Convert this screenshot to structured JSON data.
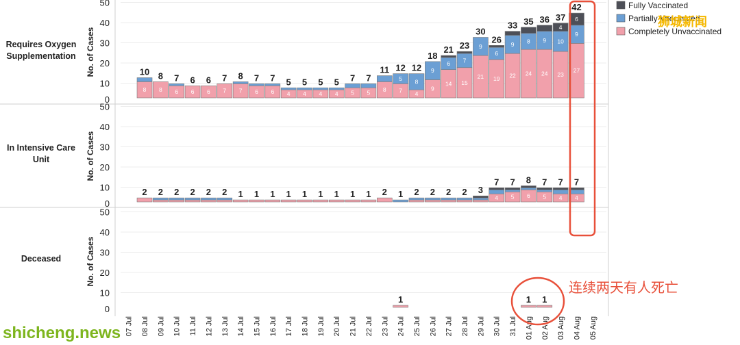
{
  "chart_data": {
    "type": "bar",
    "stacked": true,
    "ylim": [
      0,
      50
    ],
    "y_ticks": [
      0,
      10,
      20,
      30,
      40,
      50
    ],
    "ylabel": "No. of Cases",
    "categories": [
      "07 Jul",
      "08 Jul",
      "09 Jul",
      "10 Jul",
      "11 Jul",
      "12 Jul",
      "13 Jul",
      "14 Jul",
      "15 Jul",
      "16 Jul",
      "17 Jul",
      "18 Jul",
      "19 Jul",
      "20 Jul",
      "21 Jul",
      "22 Jul",
      "23 Jul",
      "24 Jul",
      "25 Jul",
      "26 Jul",
      "27 Jul",
      "28 Jul",
      "29 Jul",
      "30 Jul",
      "31 Jul",
      "01 Aug",
      "02 Aug",
      "03 Aug",
      "04 Aug",
      "05 Aug"
    ],
    "legend": [
      {
        "name": "Fully Vaccinated",
        "color": "#4d4f57"
      },
      {
        "name": "Partially Vaccinated",
        "color": "#6b9fd4"
      },
      {
        "name": "Completely Unvaccinated",
        "color": "#f1a0ab"
      }
    ],
    "panels": [
      {
        "title": "Requires Oxygen Supplementation",
        "title_lines": [
          "Requires Oxygen",
          "Supplementation"
        ],
        "totals": [
          null,
          10,
          8,
          7,
          6,
          6,
          7,
          8,
          7,
          7,
          5,
          5,
          5,
          5,
          7,
          7,
          11,
          12,
          12,
          18,
          21,
          23,
          30,
          26,
          33,
          35,
          36,
          37,
          42,
          null
        ],
        "series": [
          {
            "name": "Completely Unvaccinated",
            "values": [
              0,
              8,
              8,
              6,
              6,
              6,
              7,
              7,
              6,
              6,
              4,
              4,
              4,
              4,
              5,
              5,
              8,
              7,
              4,
              9,
              14,
              15,
              21,
              19,
              22,
              24,
              24,
              23,
              27,
              0
            ]
          },
          {
            "name": "Partially Vaccinated",
            "values": [
              0,
              2,
              0,
              1,
              0,
              0,
              0,
              1,
              1,
              1,
              1,
              1,
              1,
              1,
              2,
              2,
              3,
              5,
              8,
              9,
              6,
              7,
              9,
              6,
              9,
              8,
              9,
              10,
              9,
              0
            ]
          },
          {
            "name": "Fully Vaccinated",
            "values": [
              0,
              0,
              0,
              0,
              0,
              0,
              0,
              0,
              0,
              0,
              0,
              0,
              0,
              0,
              0,
              0,
              0,
              0,
              0,
              0,
              1,
              1,
              0,
              1,
              2,
              3,
              3,
              4,
              6,
              0
            ]
          }
        ]
      },
      {
        "title": "In Intensive Care Unit",
        "title_lines": [
          "In Intensive Care",
          "Unit"
        ],
        "totals": [
          null,
          2,
          2,
          2,
          2,
          2,
          2,
          1,
          1,
          1,
          1,
          1,
          1,
          1,
          1,
          1,
          2,
          1,
          2,
          2,
          2,
          2,
          3,
          7,
          7,
          8,
          7,
          7,
          7,
          null
        ],
        "series": [
          {
            "name": "Completely Unvaccinated",
            "values": [
              0,
              2,
              1,
              1,
              1,
              1,
              1,
              1,
              1,
              1,
              1,
              1,
              1,
              1,
              1,
              1,
              2,
              0,
              1,
              1,
              1,
              1,
              1,
              4,
              5,
              6,
              5,
              4,
              4,
              0
            ]
          },
          {
            "name": "Partially Vaccinated",
            "values": [
              0,
              0,
              1,
              1,
              1,
              1,
              1,
              0,
              0,
              0,
              0,
              0,
              0,
              0,
              0,
              0,
              0,
              1,
              1,
              1,
              1,
              1,
              1,
              2,
              1,
              1,
              1,
              2,
              2,
              0
            ]
          },
          {
            "name": "Fully Vaccinated",
            "values": [
              0,
              0,
              0,
              0,
              0,
              0,
              0,
              0,
              0,
              0,
              0,
              0,
              0,
              0,
              0,
              0,
              0,
              0,
              0,
              0,
              0,
              0,
              1,
              1,
              1,
              1,
              1,
              1,
              1,
              0
            ]
          }
        ]
      },
      {
        "title": "Deceased",
        "title_lines": [
          "Deceased"
        ],
        "totals": [
          null,
          null,
          null,
          null,
          null,
          null,
          null,
          null,
          null,
          null,
          null,
          null,
          null,
          null,
          null,
          null,
          null,
          1,
          null,
          null,
          null,
          null,
          null,
          null,
          null,
          1,
          1,
          null,
          null,
          null
        ],
        "series": [
          {
            "name": "Completely Unvaccinated",
            "values": [
              0,
              0,
              0,
              0,
              0,
              0,
              0,
              0,
              0,
              0,
              0,
              0,
              0,
              0,
              0,
              0,
              0,
              1,
              0,
              0,
              0,
              0,
              0,
              0,
              0,
              1,
              1,
              0,
              0,
              0
            ]
          },
          {
            "name": "Partially Vaccinated",
            "values": [
              0,
              0,
              0,
              0,
              0,
              0,
              0,
              0,
              0,
              0,
              0,
              0,
              0,
              0,
              0,
              0,
              0,
              0,
              0,
              0,
              0,
              0,
              0,
              0,
              0,
              0,
              0,
              0,
              0,
              0
            ]
          },
          {
            "name": "Fully Vaccinated",
            "values": [
              0,
              0,
              0,
              0,
              0,
              0,
              0,
              0,
              0,
              0,
              0,
              0,
              0,
              0,
              0,
              0,
              0,
              0,
              0,
              0,
              0,
              0,
              0,
              0,
              0,
              0,
              0,
              0,
              0,
              0
            ]
          }
        ]
      }
    ],
    "annotations": [
      {
        "text": "连续两天有人死亡",
        "color": "#e8503a",
        "target": "Deceased 01 Aug - 02 Aug"
      },
      {
        "text": "",
        "color": "#e8503a",
        "target": "Requires Oxygen Supplementation & ICU 04 Aug (highlight box)"
      }
    ]
  },
  "branding": {
    "top_right": "狮城新闻",
    "bottom_left": "shicheng.news"
  }
}
